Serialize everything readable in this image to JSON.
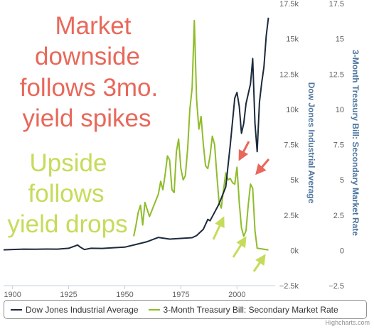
{
  "chart_data": {
    "type": "line",
    "xlim": [
      1896,
      2017
    ],
    "x_ticks": [
      "1900",
      "1925",
      "1950",
      "1975",
      "2000"
    ],
    "x_tick_values": [
      1900,
      1925,
      1950,
      1975,
      2000
    ],
    "y_left": {
      "label": "Dow Jones Industrial Average",
      "ylim": [
        -2500,
        17500
      ],
      "ticks": [
        "−2.5k",
        "0k",
        "2.5k",
        "5k",
        "7.5k",
        "10k",
        "12.5k",
        "15k",
        "17.5k"
      ],
      "tick_values": [
        -2500,
        0,
        2500,
        5000,
        7500,
        10000,
        12500,
        15000,
        17500
      ]
    },
    "y_right": {
      "label": "3-Month Treasury Bill: Secondary Market Rate",
      "ylim": [
        -2.5,
        17.5
      ],
      "ticks": [
        "−2.5",
        "0",
        "2.5",
        "5",
        "7.5",
        "10",
        "12.5",
        "15",
        "17.5"
      ],
      "tick_values": [
        -2.5,
        0,
        2.5,
        5,
        7.5,
        10,
        12.5,
        15,
        17.5
      ]
    },
    "grid": false,
    "legend_position": "bottom",
    "series": [
      {
        "name": "Dow Jones Industrial Average",
        "axis": "left",
        "color": "#1b2a3d",
        "x": [
          1896,
          1900,
          1905,
          1910,
          1915,
          1920,
          1925,
          1929,
          1930,
          1932,
          1935,
          1940,
          1945,
          1950,
          1955,
          1960,
          1965,
          1970,
          1975,
          1980,
          1982,
          1985,
          1987,
          1988,
          1990,
          1992,
          1995,
          1997,
          1999,
          2000,
          2001,
          2002,
          2003,
          2004,
          2006,
          2007,
          2008,
          2009,
          2010,
          2011,
          2012,
          2013,
          2014
        ],
        "y": [
          40,
          65,
          90,
          85,
          95,
          90,
          150,
          380,
          250,
          60,
          150,
          140,
          190,
          230,
          420,
          620,
          920,
          800,
          850,
          900,
          1050,
          1500,
          2200,
          2100,
          2700,
          3300,
          4500,
          7500,
          10800,
          11200,
          10200,
          8300,
          9000,
          10400,
          11800,
          13600,
          9000,
          7000,
          10500,
          11900,
          13000,
          15200,
          16500
        ]
      },
      {
        "name": "3-Month Treasury Bill: Secondary Market Rate",
        "axis": "right",
        "color": "#8fbc2b",
        "x": [
          1954,
          1955,
          1956,
          1957,
          1958,
          1959,
          1960,
          1961,
          1962,
          1963,
          1964,
          1965,
          1966,
          1967,
          1968,
          1969,
          1970,
          1971,
          1972,
          1973,
          1974,
          1975,
          1976,
          1977,
          1978,
          1979,
          1980,
          1981,
          1982,
          1983,
          1984,
          1985,
          1986,
          1987,
          1988,
          1989,
          1990,
          1991,
          1992,
          1993,
          1994,
          1995,
          1996,
          1997,
          1998,
          1999,
          2000,
          2001,
          2002,
          2003,
          2004,
          2005,
          2006,
          2007,
          2008,
          2009,
          2010,
          2012,
          2014
        ],
        "y": [
          1.0,
          1.8,
          2.7,
          3.2,
          1.8,
          3.4,
          2.9,
          2.4,
          2.8,
          3.2,
          3.6,
          4.0,
          4.9,
          4.3,
          5.4,
          6.7,
          6.4,
          4.3,
          4.1,
          7.0,
          7.9,
          5.8,
          5.0,
          5.3,
          7.2,
          10.0,
          11.5,
          16.3,
          10.7,
          8.6,
          9.5,
          7.5,
          6.0,
          5.8,
          6.7,
          8.1,
          7.5,
          5.4,
          3.4,
          3.0,
          4.3,
          5.5,
          5.0,
          5.1,
          4.8,
          4.7,
          5.9,
          3.4,
          1.6,
          1.0,
          1.4,
          3.2,
          4.7,
          4.4,
          1.4,
          0.15,
          0.13,
          0.08,
          0.03
        ]
      }
    ]
  },
  "annotations": {
    "red_text": [
      "Market",
      "downside",
      "follows 3mo.",
      "yield spikes"
    ],
    "green_text": [
      "Upside",
      "follows",
      "yield drops"
    ],
    "red_color": "#e8685a",
    "green_color": "#c5dc5a",
    "red_arrows": 2,
    "green_arrows": 3
  },
  "legend": {
    "items": [
      {
        "label": "Dow Jones Industrial Average",
        "color": "#1b2a3d"
      },
      {
        "label": "3-Month Treasury Bill: Secondary Market Rate",
        "color": "#8fbc2b"
      }
    ]
  },
  "credits": "Highcharts.com"
}
